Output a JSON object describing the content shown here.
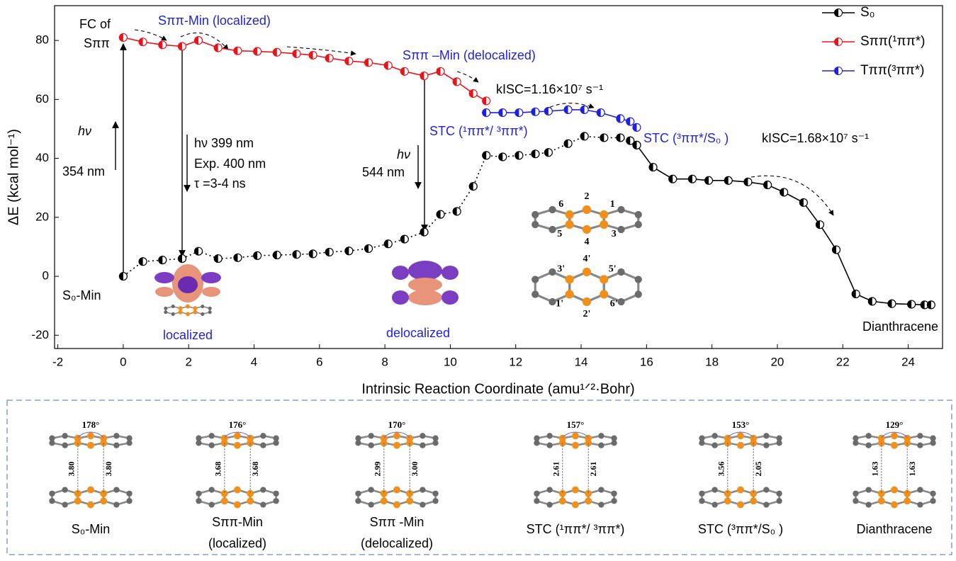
{
  "chart_data": {
    "type": "line",
    "xlabel": "Intrinsic Reaction Coordinate (amu¹ᐟ²·Bohr)",
    "ylabel": "ΔE (kcal mol⁻¹)",
    "xlim": [
      -2.1,
      25.05
    ],
    "ylim": [
      -24.5,
      91.8
    ],
    "xticks": [
      -2,
      0,
      2,
      4,
      6,
      8,
      10,
      12,
      14,
      16,
      18,
      20,
      22,
      24
    ],
    "yticks": [
      -20,
      0,
      20,
      40,
      60,
      80
    ],
    "legend": "upper right",
    "series": [
      {
        "name": "S₀",
        "color": "#000000",
        "linestyle": "dotted",
        "x": [
          0,
          0.6,
          1.2,
          1.8,
          2.3,
          2.9,
          3.5,
          4.1,
          4.7,
          5.3,
          5.8,
          6.3,
          6.9,
          7.5,
          8.1,
          8.6,
          9.2,
          9.7,
          10.2,
          10.7,
          11.1,
          11.6,
          12.1,
          12.6,
          13.0,
          13.6,
          14.1,
          14.7,
          15.2,
          15.5,
          15.7
        ],
        "values": [
          0,
          5,
          5.5,
          6,
          8.5,
          6,
          6.3,
          7,
          7.2,
          7.4,
          7.6,
          8.2,
          8.6,
          9.4,
          11,
          12.6,
          15,
          21,
          22,
          30.5,
          41,
          40.5,
          41,
          41.5,
          42,
          45,
          47.5,
          47,
          47,
          46,
          44.5
        ]
      },
      {
        "color": "#000000",
        "linestyle": "solid",
        "x": [
          15.7,
          16.2,
          16.8,
          17.4,
          17.9,
          18.5,
          19.1,
          19.7,
          20.2,
          20.8,
          21.3,
          21.8,
          22.4,
          22.9,
          23.5,
          24.1,
          24.5,
          24.7
        ],
        "values": [
          44.5,
          37,
          33,
          33,
          32.5,
          32.5,
          32,
          31,
          28.5,
          25,
          17.5,
          9,
          -6,
          -8.5,
          -9.3,
          -9.5,
          -9.7,
          -9.7
        ]
      },
      {
        "name": "Sππ(¹ππ*)",
        "color": "#e8141b",
        "linestyle": "solid",
        "x": [
          0,
          0.6,
          1.2,
          1.8,
          2.3,
          2.9,
          3.5,
          4.1,
          4.7,
          5.3,
          5.8,
          6.3,
          6.9,
          7.5,
          8.1,
          8.6,
          9.2,
          9.7,
          10.2,
          10.7,
          11.1
        ],
        "values": [
          81,
          79.5,
          78.5,
          78,
          80,
          77.5,
          76.5,
          76.3,
          76,
          75.5,
          75,
          74,
          73,
          72.5,
          71.5,
          69.5,
          68,
          69.5,
          66,
          62,
          59.5
        ]
      },
      {
        "name": "Tππ(³ππ*)",
        "color": "#1f1fe0",
        "linestyle": "solid",
        "x": [
          11.1,
          11.6,
          12.1,
          12.6,
          13.0,
          13.6,
          14.1,
          14.6,
          15.2,
          15.5,
          15.7
        ],
        "values": [
          55.5,
          55.5,
          55.5,
          55.8,
          56,
          56.5,
          56.5,
          55.5,
          53.5,
          52.5,
          50.5
        ]
      }
    ],
    "annotations": [
      "FC of",
      "Sππ",
      "Sππ-Min (localized)",
      "Sππ –Min (delocalized)",
      "kISC=1.16×10⁷ s⁻¹",
      "STC (¹ππ*/ ³ππ*)",
      "STC (³ππ*/S₀ )",
      "kISC=1.68×10⁷ s⁻¹",
      "hν",
      "354 nm",
      "hν 399 nm",
      "Exp. 400 nm",
      "τ =3-4 ns",
      "hν",
      "544 nm",
      "S₀-Min",
      "localized",
      "delocalized",
      "Dianthracene"
    ],
    "atom_labels": [
      "2",
      "4",
      "6",
      "1",
      "5",
      "3",
      "4'",
      "2'",
      "3'",
      "5'",
      "1'",
      "6'"
    ]
  },
  "panel": {
    "structures": [
      {
        "caption": [
          "S₀-Min"
        ],
        "angle": "178°",
        "distances": [
          "3.80",
          "3.80"
        ]
      },
      {
        "caption": [
          "Sππ-Min",
          "(localized)"
        ],
        "angle": "176°",
        "distances": [
          "3.68",
          "3.68"
        ]
      },
      {
        "caption": [
          "Sππ -Min",
          "(delocalized)"
        ],
        "angle": "170°",
        "distances": [
          "2.99",
          "3.00"
        ]
      },
      {
        "caption": [
          "STC (¹ππ*/ ³ππ*)"
        ],
        "angle": "157°",
        "distances": [
          "2.61",
          "2.61"
        ]
      },
      {
        "caption": [
          "STC (³ππ*/S₀ )"
        ],
        "angle": "153°",
        "distances": [
          "3.56",
          "2.05"
        ]
      },
      {
        "caption": [
          "Dianthracene"
        ],
        "angle": "129°",
        "distances": [
          "1.63",
          "1.63"
        ]
      }
    ]
  }
}
